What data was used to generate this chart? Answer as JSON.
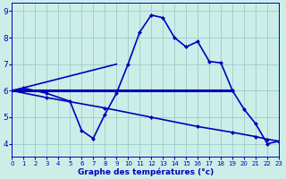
{
  "xlabel": "Graphe des températures (°c)",
  "bg_color": "#cceee8",
  "line_color": "#0000bb",
  "grid_color": "#99cccc",
  "xlim": [
    0,
    23
  ],
  "ylim": [
    3.5,
    9.3
  ],
  "yticks": [
    4,
    5,
    6,
    7,
    8,
    9
  ],
  "xticks": [
    0,
    1,
    2,
    3,
    4,
    5,
    6,
    7,
    8,
    9,
    10,
    11,
    12,
    13,
    14,
    15,
    16,
    17,
    18,
    19,
    20,
    21,
    22,
    23
  ],
  "series": [
    {
      "x": [
        0,
        19
      ],
      "y": [
        6.0,
        6.0
      ],
      "linewidth": 2.2,
      "marker": "D",
      "markersize": 2.5,
      "linestyle": "-"
    },
    {
      "x": [
        0,
        9
      ],
      "y": [
        6.0,
        7.0
      ],
      "linewidth": 1.2,
      "marker": null,
      "markersize": 0,
      "linestyle": "-"
    },
    {
      "x": [
        0,
        1,
        3,
        5,
        6,
        7,
        8,
        9,
        10,
        11,
        12,
        13,
        14,
        15,
        16,
        17,
        18,
        19,
        20,
        21,
        22,
        23
      ],
      "y": [
        6.0,
        6.1,
        5.9,
        5.6,
        4.5,
        4.2,
        5.1,
        5.9,
        7.0,
        8.2,
        8.85,
        8.75,
        8.0,
        7.65,
        7.85,
        7.1,
        7.05,
        6.0,
        5.3,
        4.75,
        4.0,
        4.1
      ],
      "linewidth": 1.2,
      "marker": "D",
      "markersize": 2.5,
      "linestyle": "-"
    },
    {
      "x": [
        0,
        3,
        8,
        12,
        16,
        19,
        21,
        22,
        23
      ],
      "y": [
        6.0,
        5.74,
        5.35,
        5.0,
        4.65,
        4.43,
        4.27,
        4.17,
        4.1
      ],
      "linewidth": 1.2,
      "marker": "D",
      "markersize": 2.5,
      "linestyle": "-"
    }
  ]
}
